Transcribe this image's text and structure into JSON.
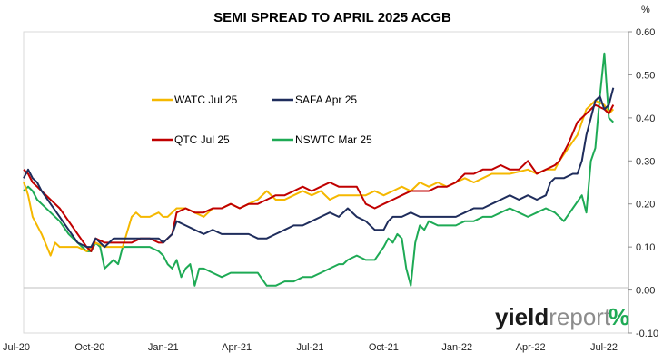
{
  "chart_data": {
    "type": "line",
    "title": "SEMI SPREAD TO APRIL 2025 ACGB",
    "y_unit_label": "%",
    "ylim": [
      -0.1,
      0.6
    ],
    "y_ticks": [
      "0.60",
      "0.50",
      "0.40",
      "0.30",
      "0.20",
      "0.10",
      "0.00",
      "-0.10"
    ],
    "x_ticks": [
      "Jul-20",
      "Oct-20",
      "Jan-21",
      "Apr-21",
      "Jul-21",
      "Oct-21",
      "Jan-22",
      "Apr-22",
      "Jul-22"
    ],
    "x_range": [
      "2020-07",
      "2022-07"
    ],
    "grid": false,
    "legend": "inside-top-left",
    "series": [
      {
        "name": "WATC Jul 25",
        "color": "#F5B800",
        "points": [
          [
            0.0,
            0.25
          ],
          [
            0.02,
            0.24
          ],
          [
            0.05,
            0.22
          ],
          [
            0.1,
            0.17
          ],
          [
            0.2,
            0.13
          ],
          [
            0.3,
            0.08
          ],
          [
            0.35,
            0.11
          ],
          [
            0.4,
            0.1
          ],
          [
            0.5,
            0.1
          ],
          [
            0.6,
            0.1
          ],
          [
            0.7,
            0.09
          ],
          [
            0.8,
            0.11
          ],
          [
            0.9,
            0.1
          ],
          [
            1.0,
            0.1
          ],
          [
            1.1,
            0.1
          ],
          [
            1.2,
            0.17
          ],
          [
            1.25,
            0.18
          ],
          [
            1.3,
            0.17
          ],
          [
            1.4,
            0.17
          ],
          [
            1.5,
            0.18
          ],
          [
            1.55,
            0.17
          ],
          [
            1.6,
            0.17
          ],
          [
            1.7,
            0.19
          ],
          [
            1.8,
            0.19
          ],
          [
            1.9,
            0.18
          ],
          [
            2.0,
            0.17
          ],
          [
            2.1,
            0.19
          ],
          [
            2.2,
            0.19
          ],
          [
            2.3,
            0.2
          ],
          [
            2.4,
            0.19
          ],
          [
            2.5,
            0.2
          ],
          [
            2.6,
            0.21
          ],
          [
            2.7,
            0.23
          ],
          [
            2.8,
            0.21
          ],
          [
            2.9,
            0.21
          ],
          [
            3.0,
            0.22
          ],
          [
            3.1,
            0.23
          ],
          [
            3.2,
            0.22
          ],
          [
            3.3,
            0.23
          ],
          [
            3.4,
            0.21
          ],
          [
            3.5,
            0.22
          ],
          [
            3.6,
            0.22
          ],
          [
            3.7,
            0.22
          ],
          [
            3.8,
            0.22
          ],
          [
            3.9,
            0.23
          ],
          [
            4.0,
            0.22
          ],
          [
            4.1,
            0.23
          ],
          [
            4.2,
            0.24
          ],
          [
            4.3,
            0.23
          ],
          [
            4.4,
            0.25
          ],
          [
            4.5,
            0.24
          ],
          [
            4.6,
            0.25
          ],
          [
            4.7,
            0.24
          ],
          [
            4.8,
            0.25
          ],
          [
            4.9,
            0.26
          ],
          [
            5.0,
            0.25
          ],
          [
            5.1,
            0.26
          ],
          [
            5.2,
            0.27
          ],
          [
            5.3,
            0.27
          ],
          [
            5.4,
            0.27
          ],
          [
            5.6,
            0.28
          ],
          [
            5.7,
            0.27
          ],
          [
            5.8,
            0.28
          ],
          [
            5.9,
            0.28
          ],
          [
            5.95,
            0.3
          ],
          [
            6.05,
            0.33
          ],
          [
            6.15,
            0.36
          ],
          [
            6.25,
            0.42
          ],
          [
            6.35,
            0.44
          ],
          [
            6.45,
            0.43
          ],
          [
            6.5,
            0.41
          ],
          [
            6.55,
            0.42
          ]
        ]
      },
      {
        "name": "SAFA Apr 25",
        "color": "#1F2D5C",
        "points": [
          [
            0.0,
            0.26
          ],
          [
            0.05,
            0.28
          ],
          [
            0.1,
            0.26
          ],
          [
            0.15,
            0.25
          ],
          [
            0.2,
            0.23
          ],
          [
            0.3,
            0.2
          ],
          [
            0.4,
            0.17
          ],
          [
            0.5,
            0.14
          ],
          [
            0.6,
            0.11
          ],
          [
            0.7,
            0.1
          ],
          [
            0.75,
            0.1
          ],
          [
            0.8,
            0.12
          ],
          [
            0.9,
            0.1
          ],
          [
            1.0,
            0.12
          ],
          [
            1.1,
            0.12
          ],
          [
            1.2,
            0.12
          ],
          [
            1.3,
            0.12
          ],
          [
            1.4,
            0.12
          ],
          [
            1.5,
            0.12
          ],
          [
            1.55,
            0.11
          ],
          [
            1.6,
            0.12
          ],
          [
            1.65,
            0.13
          ],
          [
            1.7,
            0.16
          ],
          [
            1.8,
            0.15
          ],
          [
            1.9,
            0.14
          ],
          [
            2.0,
            0.13
          ],
          [
            2.1,
            0.14
          ],
          [
            2.2,
            0.13
          ],
          [
            2.3,
            0.13
          ],
          [
            2.4,
            0.13
          ],
          [
            2.5,
            0.13
          ],
          [
            2.6,
            0.12
          ],
          [
            2.7,
            0.12
          ],
          [
            2.8,
            0.13
          ],
          [
            2.9,
            0.14
          ],
          [
            3.0,
            0.15
          ],
          [
            3.1,
            0.15
          ],
          [
            3.2,
            0.16
          ],
          [
            3.3,
            0.17
          ],
          [
            3.4,
            0.18
          ],
          [
            3.5,
            0.17
          ],
          [
            3.6,
            0.19
          ],
          [
            3.7,
            0.17
          ],
          [
            3.8,
            0.16
          ],
          [
            3.9,
            0.14
          ],
          [
            4.0,
            0.14
          ],
          [
            4.05,
            0.16
          ],
          [
            4.1,
            0.17
          ],
          [
            4.2,
            0.17
          ],
          [
            4.3,
            0.18
          ],
          [
            4.4,
            0.17
          ],
          [
            4.5,
            0.17
          ],
          [
            4.6,
            0.17
          ],
          [
            4.7,
            0.17
          ],
          [
            4.8,
            0.17
          ],
          [
            4.9,
            0.18
          ],
          [
            5.0,
            0.19
          ],
          [
            5.1,
            0.19
          ],
          [
            5.2,
            0.2
          ],
          [
            5.3,
            0.21
          ],
          [
            5.4,
            0.22
          ],
          [
            5.5,
            0.21
          ],
          [
            5.6,
            0.22
          ],
          [
            5.7,
            0.21
          ],
          [
            5.8,
            0.22
          ],
          [
            5.85,
            0.25
          ],
          [
            5.9,
            0.26
          ],
          [
            6.0,
            0.26
          ],
          [
            6.1,
            0.27
          ],
          [
            6.15,
            0.27
          ],
          [
            6.2,
            0.3
          ],
          [
            6.25,
            0.36
          ],
          [
            6.3,
            0.4
          ],
          [
            6.35,
            0.44
          ],
          [
            6.4,
            0.45
          ],
          [
            6.45,
            0.42
          ],
          [
            6.5,
            0.43
          ],
          [
            6.55,
            0.47
          ]
        ]
      },
      {
        "name": "QTC Jul 25",
        "color": "#C00000",
        "points": [
          [
            0.0,
            0.28
          ],
          [
            0.05,
            0.27
          ],
          [
            0.1,
            0.25
          ],
          [
            0.15,
            0.24
          ],
          [
            0.2,
            0.23
          ],
          [
            0.3,
            0.21
          ],
          [
            0.4,
            0.19
          ],
          [
            0.5,
            0.16
          ],
          [
            0.6,
            0.13
          ],
          [
            0.7,
            0.1
          ],
          [
            0.75,
            0.09
          ],
          [
            0.8,
            0.12
          ],
          [
            0.9,
            0.11
          ],
          [
            1.0,
            0.11
          ],
          [
            1.1,
            0.11
          ],
          [
            1.2,
            0.11
          ],
          [
            1.3,
            0.12
          ],
          [
            1.4,
            0.12
          ],
          [
            1.5,
            0.11
          ],
          [
            1.55,
            0.11
          ],
          [
            1.6,
            0.12
          ],
          [
            1.65,
            0.13
          ],
          [
            1.7,
            0.18
          ],
          [
            1.8,
            0.19
          ],
          [
            1.9,
            0.18
          ],
          [
            2.0,
            0.18
          ],
          [
            2.1,
            0.19
          ],
          [
            2.2,
            0.19
          ],
          [
            2.3,
            0.2
          ],
          [
            2.4,
            0.19
          ],
          [
            2.5,
            0.2
          ],
          [
            2.6,
            0.2
          ],
          [
            2.7,
            0.21
          ],
          [
            2.8,
            0.22
          ],
          [
            2.9,
            0.22
          ],
          [
            3.0,
            0.23
          ],
          [
            3.1,
            0.24
          ],
          [
            3.2,
            0.23
          ],
          [
            3.3,
            0.24
          ],
          [
            3.4,
            0.25
          ],
          [
            3.5,
            0.24
          ],
          [
            3.6,
            0.24
          ],
          [
            3.7,
            0.24
          ],
          [
            3.8,
            0.2
          ],
          [
            3.9,
            0.19
          ],
          [
            4.0,
            0.2
          ],
          [
            4.1,
            0.21
          ],
          [
            4.2,
            0.22
          ],
          [
            4.3,
            0.23
          ],
          [
            4.4,
            0.23
          ],
          [
            4.5,
            0.23
          ],
          [
            4.6,
            0.24
          ],
          [
            4.7,
            0.24
          ],
          [
            4.8,
            0.25
          ],
          [
            4.9,
            0.27
          ],
          [
            5.0,
            0.27
          ],
          [
            5.1,
            0.28
          ],
          [
            5.2,
            0.28
          ],
          [
            5.3,
            0.29
          ],
          [
            5.4,
            0.28
          ],
          [
            5.5,
            0.28
          ],
          [
            5.6,
            0.3
          ],
          [
            5.7,
            0.27
          ],
          [
            5.8,
            0.28
          ],
          [
            5.9,
            0.29
          ],
          [
            5.95,
            0.3
          ],
          [
            6.05,
            0.34
          ],
          [
            6.15,
            0.39
          ],
          [
            6.25,
            0.41
          ],
          [
            6.35,
            0.43
          ],
          [
            6.45,
            0.42
          ],
          [
            6.5,
            0.41
          ],
          [
            6.55,
            0.43
          ]
        ]
      },
      {
        "name": "NSWTC Mar 25",
        "color": "#1EAA55",
        "points": [
          [
            0.0,
            0.23
          ],
          [
            0.05,
            0.24
          ],
          [
            0.1,
            0.23
          ],
          [
            0.15,
            0.21
          ],
          [
            0.2,
            0.2
          ],
          [
            0.3,
            0.18
          ],
          [
            0.4,
            0.16
          ],
          [
            0.5,
            0.13
          ],
          [
            0.6,
            0.11
          ],
          [
            0.7,
            0.09
          ],
          [
            0.75,
            0.09
          ],
          [
            0.8,
            0.11
          ],
          [
            0.85,
            0.1
          ],
          [
            0.9,
            0.05
          ],
          [
            1.0,
            0.07
          ],
          [
            1.05,
            0.06
          ],
          [
            1.1,
            0.1
          ],
          [
            1.2,
            0.1
          ],
          [
            1.3,
            0.1
          ],
          [
            1.4,
            0.1
          ],
          [
            1.5,
            0.09
          ],
          [
            1.55,
            0.08
          ],
          [
            1.6,
            0.06
          ],
          [
            1.65,
            0.05
          ],
          [
            1.7,
            0.07
          ],
          [
            1.75,
            0.03
          ],
          [
            1.8,
            0.05
          ],
          [
            1.85,
            0.06
          ],
          [
            1.9,
            0.01
          ],
          [
            1.95,
            0.05
          ],
          [
            2.0,
            0.05
          ],
          [
            2.1,
            0.04
          ],
          [
            2.2,
            0.03
          ],
          [
            2.3,
            0.04
          ],
          [
            2.4,
            0.04
          ],
          [
            2.5,
            0.04
          ],
          [
            2.6,
            0.04
          ],
          [
            2.7,
            0.01
          ],
          [
            2.8,
            0.01
          ],
          [
            2.9,
            0.02
          ],
          [
            3.0,
            0.02
          ],
          [
            3.1,
            0.03
          ],
          [
            3.2,
            0.03
          ],
          [
            3.3,
            0.04
          ],
          [
            3.4,
            0.05
          ],
          [
            3.5,
            0.06
          ],
          [
            3.55,
            0.06
          ],
          [
            3.6,
            0.07
          ],
          [
            3.7,
            0.08
          ],
          [
            3.8,
            0.07
          ],
          [
            3.9,
            0.07
          ],
          [
            4.0,
            0.1
          ],
          [
            4.05,
            0.12
          ],
          [
            4.1,
            0.11
          ],
          [
            4.15,
            0.13
          ],
          [
            4.2,
            0.12
          ],
          [
            4.25,
            0.05
          ],
          [
            4.3,
            0.01
          ],
          [
            4.35,
            0.11
          ],
          [
            4.4,
            0.15
          ],
          [
            4.45,
            0.14
          ],
          [
            4.5,
            0.16
          ],
          [
            4.6,
            0.15
          ],
          [
            4.7,
            0.15
          ],
          [
            4.8,
            0.15
          ],
          [
            4.9,
            0.16
          ],
          [
            5.0,
            0.16
          ],
          [
            5.1,
            0.17
          ],
          [
            5.2,
            0.17
          ],
          [
            5.3,
            0.18
          ],
          [
            5.4,
            0.19
          ],
          [
            5.5,
            0.18
          ],
          [
            5.6,
            0.17
          ],
          [
            5.7,
            0.18
          ],
          [
            5.8,
            0.19
          ],
          [
            5.9,
            0.18
          ],
          [
            5.95,
            0.17
          ],
          [
            6.0,
            0.16
          ],
          [
            6.1,
            0.19
          ],
          [
            6.2,
            0.22
          ],
          [
            6.25,
            0.18
          ],
          [
            6.3,
            0.3
          ],
          [
            6.35,
            0.33
          ],
          [
            6.4,
            0.45
          ],
          [
            6.45,
            0.55
          ],
          [
            6.5,
            0.4
          ],
          [
            6.55,
            0.39
          ]
        ]
      }
    ]
  },
  "brand": {
    "part1": "yield",
    "part2": "report",
    "symbol": "%"
  }
}
